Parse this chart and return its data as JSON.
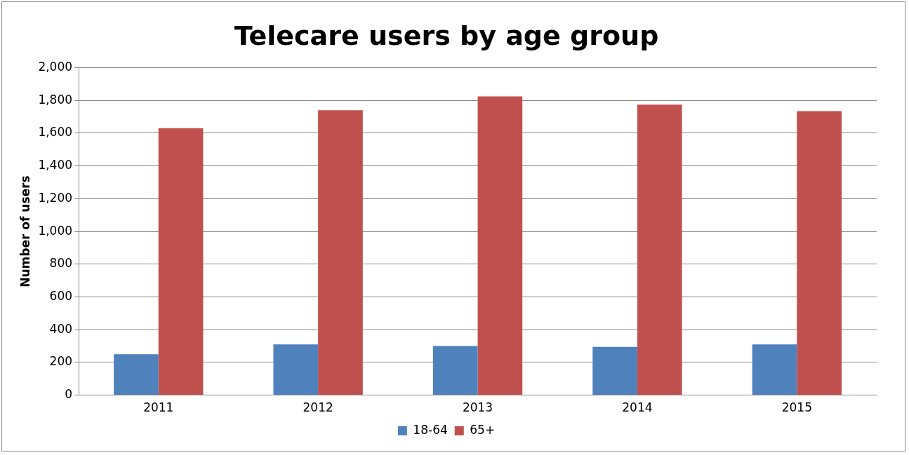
{
  "chart_data": {
    "type": "bar",
    "title": "Telecare users by age group",
    "ylabel": "Number of users",
    "categories": [
      "2011",
      "2012",
      "2013",
      "2014",
      "2015"
    ],
    "series": [
      {
        "name": "18-64",
        "color": "#4f81bd",
        "values": [
          250,
          310,
          300,
          295,
          310
        ]
      },
      {
        "name": "65+",
        "color": "#c0504d",
        "values": [
          1630,
          1740,
          1825,
          1775,
          1735
        ]
      }
    ],
    "ylim": [
      0,
      2000
    ],
    "yticks": [
      {
        "value": 0,
        "label": "0"
      },
      {
        "value": 200,
        "label": "200"
      },
      {
        "value": 400,
        "label": "400"
      },
      {
        "value": 600,
        "label": "600"
      },
      {
        "value": 800,
        "label": "800"
      },
      {
        "value": 1000,
        "label": "1,000"
      },
      {
        "value": 1200,
        "label": "1,200"
      },
      {
        "value": 1400,
        "label": "1,400"
      },
      {
        "value": 1600,
        "label": "1,600"
      },
      {
        "value": 1800,
        "label": "1,800"
      },
      {
        "value": 2000,
        "label": "2,000"
      }
    ],
    "grid": "y",
    "legend": "bottom"
  }
}
